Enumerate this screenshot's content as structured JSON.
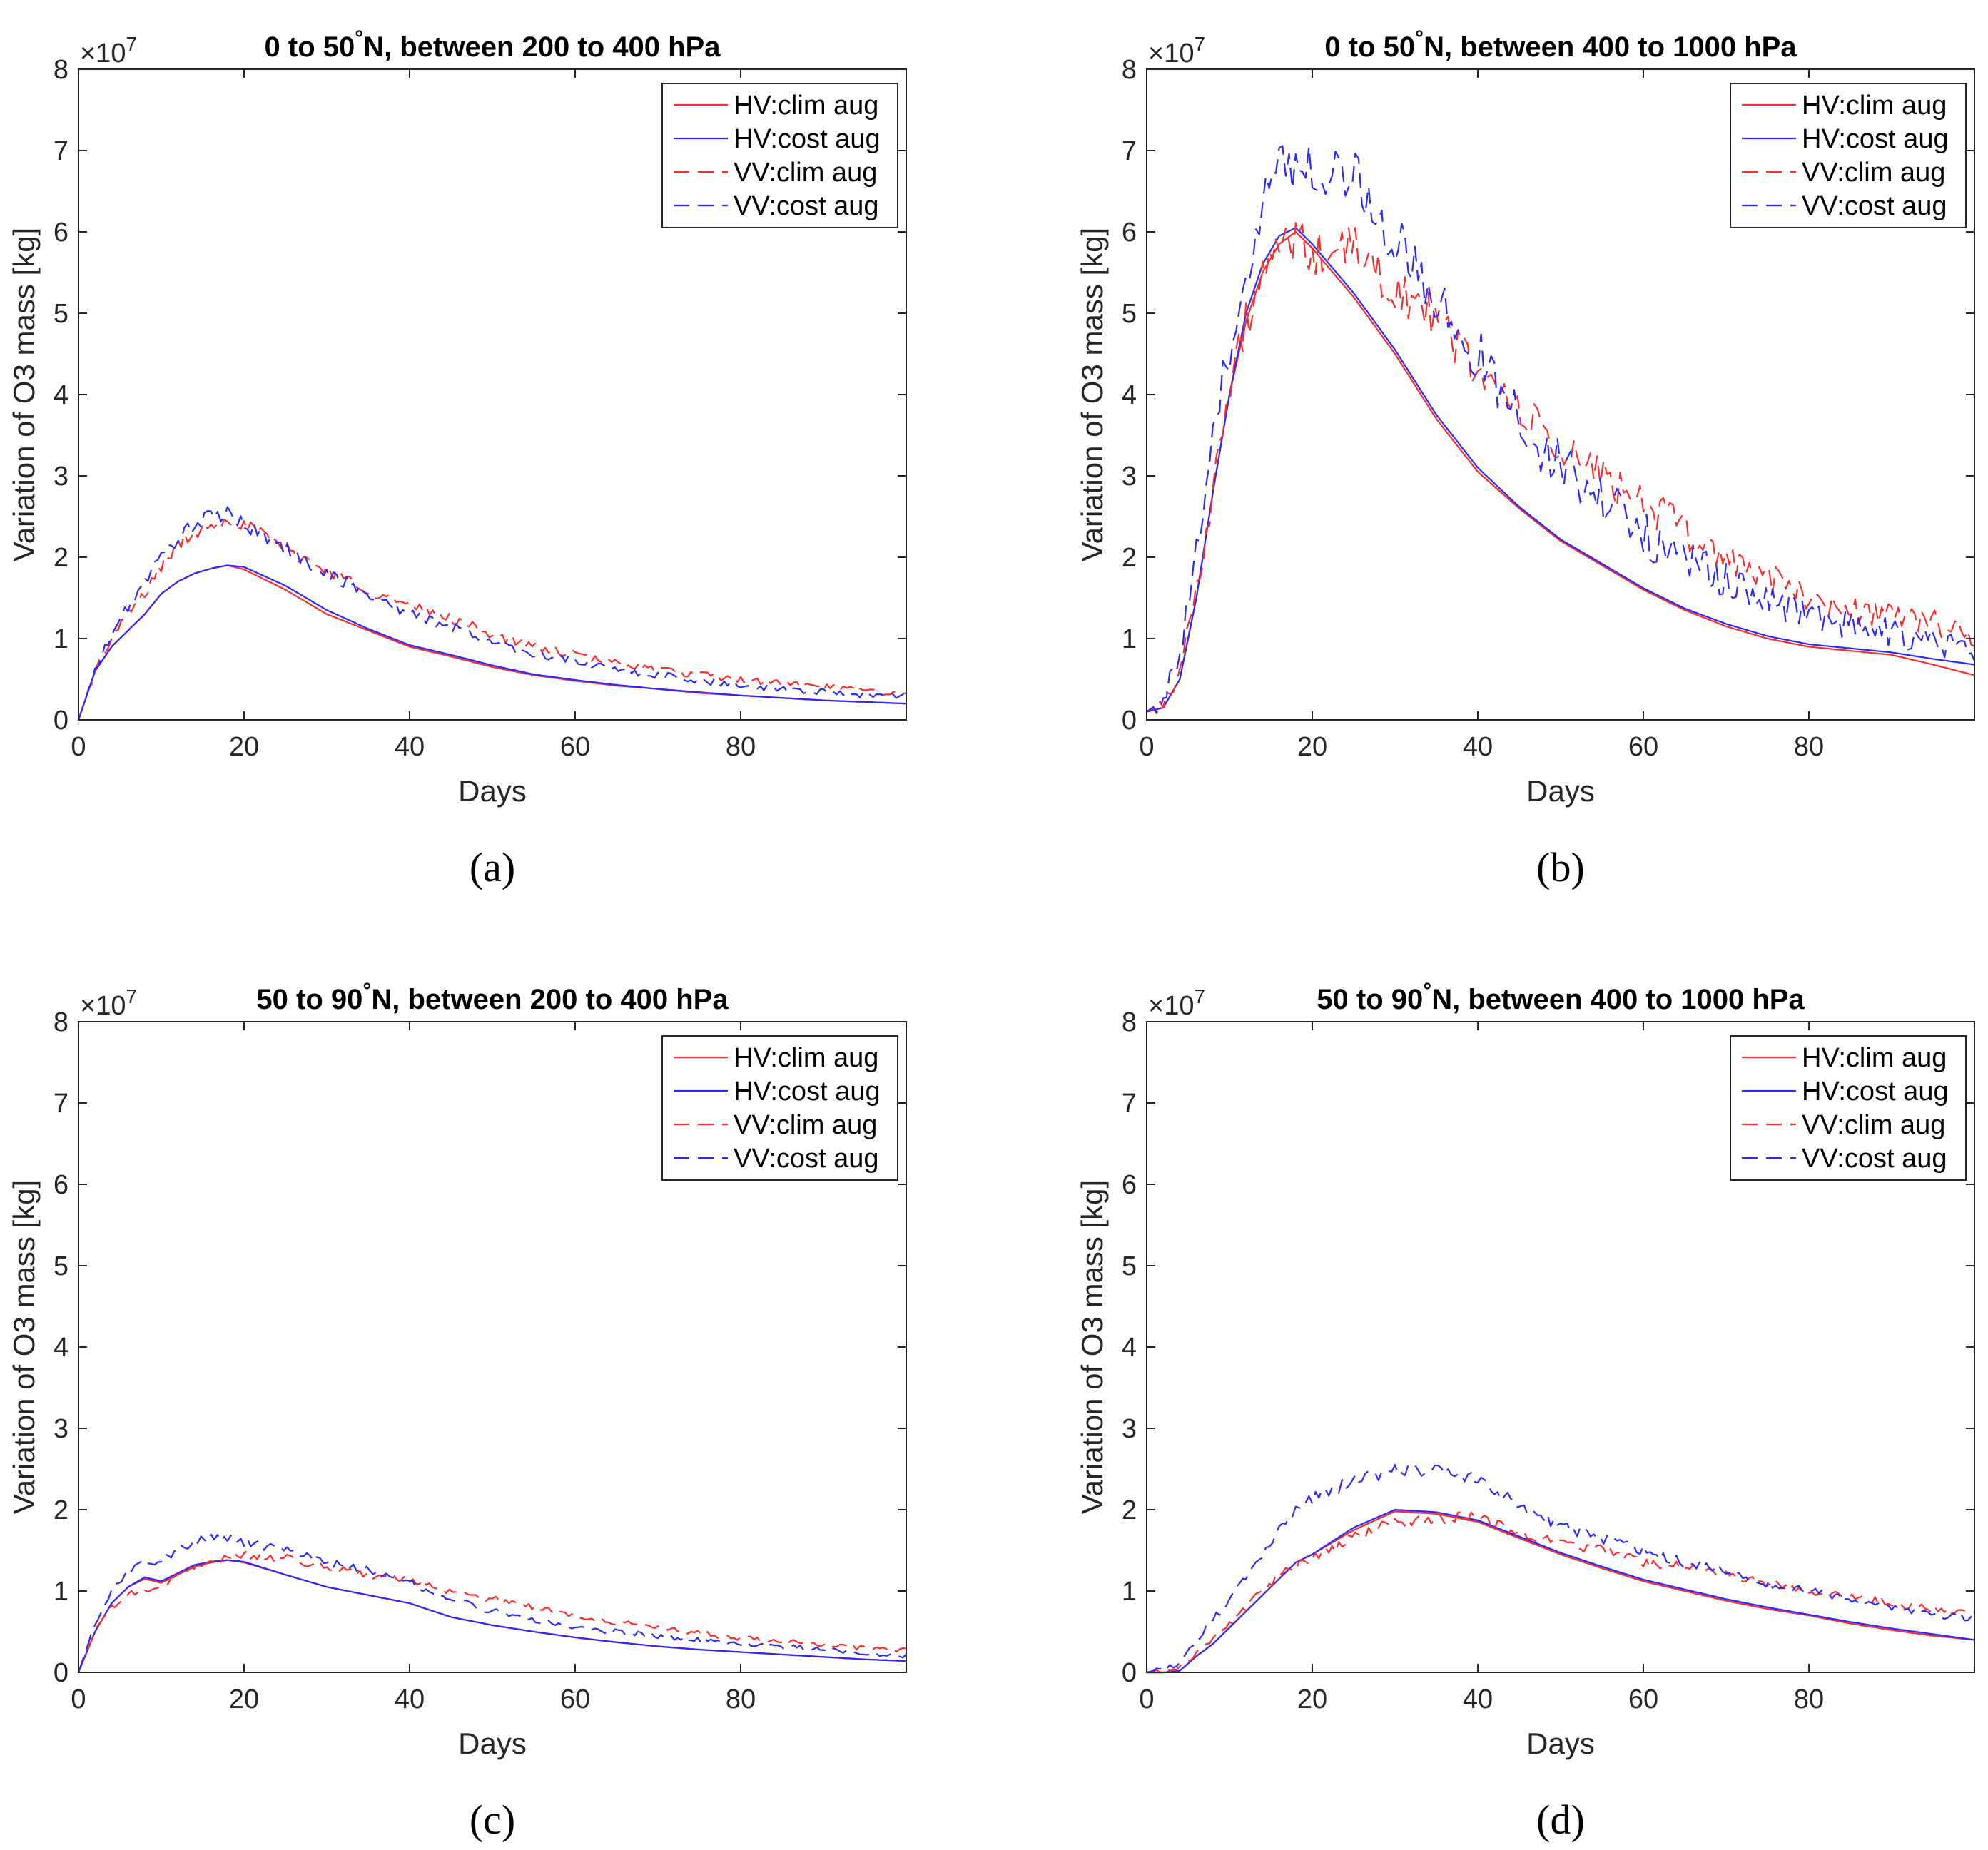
{
  "figure": {
    "panels": [
      "(a)",
      "(b)",
      "(c)",
      "(d)"
    ]
  },
  "legend": {
    "entries": [
      "HV:clim aug",
      "HV:cost aug",
      "VV:clim aug",
      "VV:cost aug"
    ]
  },
  "colors": {
    "red": "#ff2a2a",
    "blue": "#2a2aff"
  },
  "chart_data": [
    {
      "type": "line",
      "title_main": "0 to 50",
      "title_degree": "°",
      "title_rest": "N, between 200 to 400 hPa",
      "xlabel": "Days",
      "ylabel": "Variation of O3 mass [kg]",
      "y_multiplier": "×10",
      "y_exponent": "7",
      "xlim": [
        0,
        100
      ],
      "ylim": [
        0,
        8
      ],
      "xticks": [
        0,
        20,
        40,
        60,
        80
      ],
      "yticks": [
        0,
        1,
        2,
        3,
        4,
        5,
        6,
        7,
        8
      ],
      "x": [
        0,
        2,
        4,
        6,
        8,
        10,
        12,
        14,
        16,
        18,
        20,
        25,
        30,
        35,
        40,
        45,
        50,
        55,
        60,
        65,
        70,
        75,
        80,
        85,
        90,
        95,
        100
      ],
      "series": [
        {
          "name": "HV:clim aug",
          "color": "red",
          "dash": false,
          "noise": 0,
          "values": [
            0.0,
            0.6,
            0.9,
            1.1,
            1.3,
            1.55,
            1.7,
            1.8,
            1.86,
            1.9,
            1.85,
            1.6,
            1.3,
            1.1,
            0.9,
            0.78,
            0.65,
            0.55,
            0.48,
            0.42,
            0.38,
            0.33,
            0.3,
            0.27,
            0.24,
            0.22,
            0.2
          ]
        },
        {
          "name": "HV:cost aug",
          "color": "blue",
          "dash": false,
          "noise": 0,
          "values": [
            0.0,
            0.6,
            0.9,
            1.1,
            1.3,
            1.55,
            1.7,
            1.8,
            1.86,
            1.9,
            1.88,
            1.65,
            1.35,
            1.12,
            0.92,
            0.8,
            0.67,
            0.56,
            0.49,
            0.43,
            0.38,
            0.34,
            0.3,
            0.27,
            0.24,
            0.22,
            0.2
          ]
        },
        {
          "name": "VV:clim aug",
          "color": "red",
          "dash": true,
          "noise": 0.08,
          "values": [
            0.0,
            0.6,
            1.0,
            1.3,
            1.55,
            1.9,
            2.15,
            2.3,
            2.42,
            2.48,
            2.4,
            2.1,
            1.85,
            1.6,
            1.4,
            1.25,
            1.05,
            0.9,
            0.8,
            0.7,
            0.62,
            0.55,
            0.5,
            0.45,
            0.4,
            0.36,
            0.33
          ]
        },
        {
          "name": "VV:cost aug",
          "color": "blue",
          "dash": true,
          "noise": 0.08,
          "values": [
            0.0,
            0.6,
            1.05,
            1.4,
            1.7,
            2.0,
            2.25,
            2.4,
            2.5,
            2.52,
            2.42,
            2.1,
            1.8,
            1.55,
            1.3,
            1.15,
            0.95,
            0.82,
            0.72,
            0.62,
            0.55,
            0.48,
            0.43,
            0.38,
            0.34,
            0.31,
            0.3
          ]
        }
      ]
    },
    {
      "type": "line",
      "title_main": "0 to 50",
      "title_degree": "°",
      "title_rest": "N, between 400 to 1000 hPa",
      "xlabel": "Days",
      "ylabel": "Variation of O3 mass [kg]",
      "y_multiplier": "×10",
      "y_exponent": "7",
      "xlim": [
        0,
        100
      ],
      "ylim": [
        0,
        8
      ],
      "xticks": [
        0,
        20,
        40,
        60,
        80
      ],
      "yticks": [
        0,
        1,
        2,
        3,
        4,
        5,
        6,
        7,
        8
      ],
      "x": [
        0,
        2,
        4,
        6,
        8,
        10,
        12,
        14,
        16,
        18,
        20,
        25,
        30,
        35,
        40,
        45,
        50,
        55,
        60,
        65,
        70,
        75,
        80,
        85,
        90,
        95,
        100
      ],
      "series": [
        {
          "name": "HV:clim aug",
          "color": "red",
          "dash": false,
          "noise": 0,
          "values": [
            0.1,
            0.15,
            0.5,
            1.5,
            2.8,
            4.0,
            4.9,
            5.5,
            5.85,
            6.0,
            5.8,
            5.2,
            4.5,
            3.7,
            3.05,
            2.6,
            2.2,
            1.9,
            1.6,
            1.35,
            1.15,
            1.0,
            0.9,
            0.85,
            0.8,
            0.68,
            0.55
          ]
        },
        {
          "name": "HV:cost aug",
          "color": "blue",
          "dash": false,
          "noise": 0,
          "values": [
            0.1,
            0.15,
            0.5,
            1.5,
            2.8,
            4.0,
            5.0,
            5.6,
            5.95,
            6.05,
            5.85,
            5.25,
            4.55,
            3.75,
            3.1,
            2.62,
            2.22,
            1.92,
            1.62,
            1.37,
            1.18,
            1.03,
            0.93,
            0.88,
            0.83,
            0.75,
            0.68
          ]
        },
        {
          "name": "VV:clim aug",
          "color": "red",
          "dash": true,
          "noise": 0.2,
          "values": [
            0.1,
            0.2,
            0.6,
            1.6,
            2.9,
            4.0,
            4.9,
            5.4,
            5.8,
            5.9,
            5.7,
            5.8,
            5.3,
            4.9,
            4.3,
            3.8,
            3.3,
            3.0,
            2.7,
            2.3,
            2.0,
            1.75,
            1.5,
            1.35,
            1.3,
            1.2,
            1.0
          ]
        },
        {
          "name": "VV:cost aug",
          "color": "blue",
          "dash": true,
          "noise": 0.25,
          "values": [
            0.1,
            0.25,
            0.8,
            2.0,
            3.3,
            4.6,
            5.6,
            6.3,
            6.8,
            6.9,
            6.8,
            6.7,
            5.9,
            5.1,
            4.5,
            3.7,
            3.1,
            2.7,
            2.3,
            1.95,
            1.7,
            1.5,
            1.3,
            1.15,
            1.05,
            0.95,
            0.85
          ]
        }
      ]
    },
    {
      "type": "line",
      "title_main": "50 to 90",
      "title_degree": "°",
      "title_rest": "N, between 200 to 400 hPa",
      "xlabel": "Days",
      "ylabel": "Variation of O3 mass [kg]",
      "y_multiplier": "×10",
      "y_exponent": "7",
      "xlim": [
        0,
        100
      ],
      "ylim": [
        0,
        8
      ],
      "xticks": [
        0,
        20,
        40,
        60,
        80
      ],
      "yticks": [
        0,
        1,
        2,
        3,
        4,
        5,
        6,
        7,
        8
      ],
      "x": [
        0,
        2,
        4,
        6,
        8,
        10,
        12,
        14,
        16,
        18,
        20,
        25,
        30,
        35,
        40,
        45,
        50,
        55,
        60,
        65,
        70,
        75,
        80,
        85,
        90,
        95,
        100
      ],
      "series": [
        {
          "name": "HV:clim aug",
          "color": "red",
          "dash": false,
          "noise": 0,
          "values": [
            0.0,
            0.5,
            0.85,
            1.05,
            1.15,
            1.1,
            1.2,
            1.3,
            1.35,
            1.38,
            1.35,
            1.2,
            1.05,
            0.95,
            0.85,
            0.68,
            0.58,
            0.5,
            0.43,
            0.37,
            0.32,
            0.28,
            0.25,
            0.22,
            0.19,
            0.16,
            0.14
          ]
        },
        {
          "name": "HV:cost aug",
          "color": "blue",
          "dash": false,
          "noise": 0,
          "values": [
            0.0,
            0.5,
            0.85,
            1.05,
            1.17,
            1.12,
            1.22,
            1.32,
            1.36,
            1.38,
            1.36,
            1.2,
            1.05,
            0.95,
            0.85,
            0.68,
            0.58,
            0.5,
            0.43,
            0.37,
            0.32,
            0.28,
            0.25,
            0.22,
            0.19,
            0.16,
            0.14
          ]
        },
        {
          "name": "VV:clim aug",
          "color": "red",
          "dash": true,
          "noise": 0.06,
          "values": [
            0.0,
            0.5,
            0.8,
            0.95,
            1.0,
            1.05,
            1.2,
            1.3,
            1.38,
            1.42,
            1.45,
            1.4,
            1.3,
            1.2,
            1.15,
            1.0,
            0.9,
            0.8,
            0.7,
            0.62,
            0.55,
            0.48,
            0.42,
            0.38,
            0.34,
            0.3,
            0.27
          ]
        },
        {
          "name": "VV:cost aug",
          "color": "blue",
          "dash": true,
          "noise": 0.06,
          "values": [
            0.0,
            0.6,
            1.0,
            1.25,
            1.35,
            1.38,
            1.5,
            1.6,
            1.66,
            1.65,
            1.6,
            1.5,
            1.35,
            1.25,
            1.1,
            0.9,
            0.75,
            0.65,
            0.55,
            0.5,
            0.45,
            0.4,
            0.36,
            0.32,
            0.28,
            0.24,
            0.2
          ]
        }
      ]
    },
    {
      "type": "line",
      "title_main": "50 to 90",
      "title_degree": "°",
      "title_rest": "N, between 400 to 1000 hPa",
      "xlabel": "Days",
      "ylabel": "Variation of O3 mass [kg]",
      "y_multiplier": "×10",
      "y_exponent": "7",
      "xlim": [
        0,
        100
      ],
      "ylim": [
        0,
        8
      ],
      "xticks": [
        0,
        20,
        40,
        60,
        80
      ],
      "yticks": [
        0,
        1,
        2,
        3,
        4,
        5,
        6,
        7,
        8
      ],
      "x": [
        0,
        2,
        4,
        6,
        8,
        10,
        12,
        14,
        16,
        18,
        20,
        25,
        30,
        35,
        40,
        45,
        50,
        55,
        60,
        65,
        70,
        75,
        80,
        85,
        90,
        95,
        100
      ],
      "series": [
        {
          "name": "HV:clim aug",
          "color": "red",
          "dash": false,
          "noise": 0,
          "values": [
            0.0,
            0.0,
            0.02,
            0.2,
            0.35,
            0.55,
            0.75,
            0.95,
            1.15,
            1.35,
            1.45,
            1.75,
            1.98,
            1.95,
            1.85,
            1.65,
            1.45,
            1.28,
            1.12,
            1.0,
            0.88,
            0.78,
            0.7,
            0.6,
            0.52,
            0.45,
            0.4
          ]
        },
        {
          "name": "HV:cost aug",
          "color": "blue",
          "dash": false,
          "noise": 0,
          "values": [
            0.0,
            0.0,
            0.02,
            0.2,
            0.35,
            0.55,
            0.75,
            0.95,
            1.15,
            1.35,
            1.45,
            1.78,
            2.0,
            1.97,
            1.87,
            1.67,
            1.47,
            1.3,
            1.14,
            1.02,
            0.9,
            0.8,
            0.71,
            0.62,
            0.54,
            0.47,
            0.4
          ]
        },
        {
          "name": "VV:clim aug",
          "color": "red",
          "dash": true,
          "noise": 0.07,
          "values": [
            0.0,
            0.02,
            0.05,
            0.25,
            0.4,
            0.6,
            0.8,
            1.0,
            1.2,
            1.3,
            1.4,
            1.65,
            1.85,
            1.9,
            1.9,
            1.7,
            1.6,
            1.5,
            1.35,
            1.3,
            1.2,
            1.1,
            1.0,
            0.95,
            0.85,
            0.78,
            0.72
          ]
        },
        {
          "name": "VV:cost aug",
          "color": "blue",
          "dash": true,
          "noise": 0.07,
          "values": [
            0.0,
            0.05,
            0.1,
            0.4,
            0.65,
            0.9,
            1.15,
            1.45,
            1.75,
            2.0,
            2.15,
            2.35,
            2.5,
            2.5,
            2.35,
            2.05,
            1.8,
            1.65,
            1.5,
            1.35,
            1.25,
            1.1,
            1.0,
            0.9,
            0.8,
            0.72,
            0.65
          ]
        }
      ]
    }
  ]
}
